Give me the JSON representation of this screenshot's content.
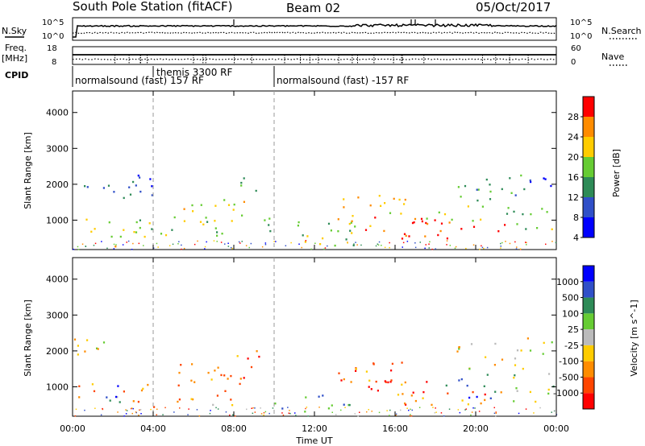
{
  "header": {
    "station": "South Pole Station (fitACF)",
    "beam": "Beam 02",
    "date": "05/Oct/2017"
  },
  "top_panels": {
    "noise": {
      "left_label": "N.Sky",
      "left_ticks": [
        "10^5",
        "10^0"
      ],
      "right_ticks": [
        "10^5",
        "10^0"
      ],
      "right_label": "N.Search"
    },
    "freq": {
      "left_label_1": "Freq.",
      "left_label_2": "[MHz]",
      "left_ticks": [
        "18",
        "8"
      ],
      "right_ticks": [
        "60",
        "0"
      ],
      "right_label": "Nave"
    },
    "cpid": {
      "label": "CPID",
      "segments": [
        {
          "label": "normalsound (fast) 157 RF",
          "start_hour": 0
        },
        {
          "label": "themis 3300 RF",
          "start_hour": 4
        },
        {
          "label": "normalsound (fast) -157 RF",
          "start_hour": 10
        }
      ]
    }
  },
  "chart_data": [
    {
      "type": "heatmap",
      "name": "power-panel",
      "ylabel": "Slant Range [km]",
      "xlabel": "",
      "x_ticks": [
        "00:00",
        "04:00",
        "08:00",
        "12:00",
        "16:00",
        "20:00",
        "00:00"
      ],
      "x_range_hours": [
        0,
        24
      ],
      "y_range_km": [
        180,
        4600
      ],
      "y_ticks": [
        "1000",
        "2000",
        "3000",
        "4000"
      ],
      "dashed_markers_hours": [
        4,
        10
      ],
      "colorbar": {
        "label": "Power [dB]",
        "ticks": [
          "28",
          "24",
          "20",
          "16",
          "12",
          "8",
          "4"
        ],
        "colors": [
          "#0000ff",
          "#3050c8",
          "#2e8b57",
          "#66cc33",
          "#ffcc00",
          "#ff8c00",
          "#ff0000"
        ]
      },
      "scatter_regions": [
        {
          "t0": 0.0,
          "t1": 3.8,
          "r0": 600,
          "r1": 1100,
          "level": 0.55
        },
        {
          "t0": 0.2,
          "t1": 1.8,
          "r0": 1800,
          "r1": 2200,
          "level": 0.2
        },
        {
          "t0": 1.5,
          "t1": 2.5,
          "r0": 250,
          "r1": 700,
          "level": 0.65
        },
        {
          "t0": 2.0,
          "t1": 4.0,
          "r0": 1500,
          "r1": 2600,
          "level": 0.25
        },
        {
          "t0": 3.5,
          "t1": 8.0,
          "r0": 450,
          "r1": 800,
          "level": 0.5
        },
        {
          "t0": 5.0,
          "t1": 9.2,
          "r0": 900,
          "r1": 1700,
          "level": 0.55
        },
        {
          "t0": 8.0,
          "t1": 9.3,
          "r0": 1700,
          "r1": 2200,
          "level": 0.4
        },
        {
          "t0": 9.0,
          "t1": 10.0,
          "r0": 700,
          "r1": 1400,
          "level": 0.5
        },
        {
          "t0": 10.0,
          "t1": 14.0,
          "r0": 300,
          "r1": 1000,
          "level": 0.45
        },
        {
          "t0": 13.0,
          "t1": 16.5,
          "r0": 800,
          "r1": 1800,
          "level": 0.7
        },
        {
          "t0": 14.5,
          "t1": 18.0,
          "r0": 700,
          "r1": 1200,
          "level": 0.92
        },
        {
          "t0": 16.0,
          "t1": 21.5,
          "r0": 500,
          "r1": 1000,
          "level": 0.95
        },
        {
          "t0": 17.5,
          "t1": 20.5,
          "r0": 1000,
          "r1": 1500,
          "level": 0.65
        },
        {
          "t0": 19.0,
          "t1": 22.5,
          "r0": 1500,
          "r1": 2300,
          "level": 0.35
        },
        {
          "t0": 21.5,
          "t1": 24.0,
          "r0": 600,
          "r1": 1400,
          "level": 0.45
        },
        {
          "t0": 22.0,
          "t1": 23.8,
          "r0": 1900,
          "r1": 2400,
          "level": 0.2
        }
      ]
    },
    {
      "type": "heatmap",
      "name": "velocity-panel",
      "ylabel": "Slant Range [km]",
      "xlabel": "Time UT",
      "x_ticks": [
        "00:00",
        "04:00",
        "08:00",
        "12:00",
        "16:00",
        "20:00",
        "00:00"
      ],
      "x_range_hours": [
        0,
        24
      ],
      "y_range_km": [
        180,
        4600
      ],
      "y_ticks": [
        "1000",
        "2000",
        "3000",
        "4000"
      ],
      "dashed_markers_hours": [
        4,
        10
      ],
      "colorbar": {
        "label": "Velocity [m s^-1]",
        "ticks": [
          "1000",
          "500",
          "100",
          "25",
          "-25",
          "-100",
          "-500",
          "-1000"
        ],
        "colors": [
          "#ff0000",
          "#ff4500",
          "#ff8c00",
          "#ffcc00",
          "#bbbbbb",
          "#66cc33",
          "#2e8b57",
          "#3050c8",
          "#0000ff"
        ]
      },
      "scatter_regions": [
        {
          "t0": 0.0,
          "t1": 2.0,
          "r0": 1800,
          "r1": 2500,
          "level": 0.45
        },
        {
          "t0": 0.0,
          "t1": 3.8,
          "r0": 600,
          "r1": 1100,
          "level": 0.3
        },
        {
          "t0": 1.5,
          "t1": 2.5,
          "r0": 250,
          "r1": 1100,
          "level": 0.8
        },
        {
          "t0": 3.5,
          "t1": 8.0,
          "r0": 450,
          "r1": 800,
          "level": 0.3
        },
        {
          "t0": 5.0,
          "t1": 9.2,
          "r0": 900,
          "r1": 1700,
          "level": 0.2
        },
        {
          "t0": 8.0,
          "t1": 9.3,
          "r0": 1700,
          "r1": 2200,
          "level": 0.2
        },
        {
          "t0": 10.0,
          "t1": 14.0,
          "r0": 300,
          "r1": 800,
          "level": 0.75
        },
        {
          "t0": 13.0,
          "t1": 16.5,
          "r0": 800,
          "r1": 1800,
          "level": 0.2
        },
        {
          "t0": 14.5,
          "t1": 18.0,
          "r0": 700,
          "r1": 1200,
          "level": 0.1
        },
        {
          "t0": 16.0,
          "t1": 21.5,
          "r0": 500,
          "r1": 1000,
          "level": 0.25
        },
        {
          "t0": 18.5,
          "t1": 21.0,
          "r0": 700,
          "r1": 1400,
          "level": 0.8
        },
        {
          "t0": 19.0,
          "t1": 22.5,
          "r0": 1500,
          "r1": 2300,
          "level": 0.45
        },
        {
          "t0": 21.5,
          "t1": 24.0,
          "r0": 600,
          "r1": 1400,
          "level": 0.55
        },
        {
          "t0": 22.0,
          "t1": 23.8,
          "r0": 1900,
          "r1": 2400,
          "level": 0.45
        }
      ]
    }
  ]
}
